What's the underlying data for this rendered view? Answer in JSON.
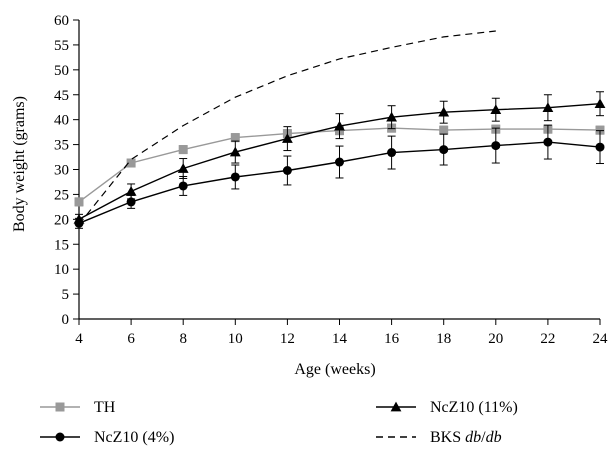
{
  "chart_data": {
    "type": "line",
    "title": "",
    "xlabel": "Age (weeks)",
    "ylabel": "Body weight (grams)",
    "xlim": [
      4,
      24
    ],
    "ylim": [
      0,
      60
    ],
    "x_ticks": [
      4,
      6,
      8,
      10,
      12,
      14,
      16,
      18,
      20,
      22,
      24
    ],
    "y_ticks": [
      0,
      5,
      10,
      15,
      20,
      25,
      30,
      35,
      40,
      45,
      50,
      55,
      60
    ],
    "grid": false,
    "legend_position": "bottom",
    "series": [
      {
        "name": "TH",
        "color": "#999999",
        "marker": "square",
        "line_style": "solid",
        "x": [
          4,
          6,
          8,
          10,
          12,
          14,
          16,
          18,
          20,
          22,
          24
        ],
        "y": [
          23.5,
          31.3,
          34.0,
          36.4,
          37.2,
          37.8,
          38.3,
          37.9,
          38.1,
          38.1,
          37.9
        ],
        "error": [
          0.8,
          0.8,
          0.8,
          0.8,
          0.8,
          0.8,
          0.8,
          0.8,
          0.8,
          0.8,
          0.8
        ]
      },
      {
        "name": "NcZ10 (11%)",
        "color": "#000000",
        "marker": "triangle",
        "line_style": "solid",
        "x": [
          4,
          6,
          8,
          10,
          12,
          14,
          16,
          18,
          20,
          22,
          24
        ],
        "y": [
          20.0,
          25.6,
          30.2,
          33.5,
          36.2,
          38.7,
          40.5,
          41.5,
          42.0,
          42.4,
          43.2
        ],
        "error": [
          1.0,
          1.5,
          2.0,
          2.2,
          2.4,
          2.5,
          2.3,
          2.2,
          2.3,
          2.6,
          2.4
        ]
      },
      {
        "name": "NcZ10 (4%)",
        "color": "#000000",
        "marker": "circle",
        "line_style": "solid",
        "x": [
          4,
          6,
          8,
          10,
          12,
          14,
          16,
          18,
          20,
          22,
          24
        ],
        "y": [
          19.2,
          23.5,
          26.7,
          28.5,
          29.8,
          31.5,
          33.4,
          34.0,
          34.8,
          35.5,
          34.5
        ],
        "error": [
          1.0,
          1.3,
          1.9,
          2.4,
          2.9,
          3.2,
          3.3,
          3.1,
          3.5,
          3.4,
          3.3
        ]
      },
      {
        "name": "BKS db/db",
        "color": "#000000",
        "marker": "none",
        "line_style": "dashed",
        "x": [
          4,
          6,
          8,
          10,
          12,
          14,
          16,
          18,
          20
        ],
        "y": [
          19.0,
          32.0,
          38.8,
          44.5,
          48.8,
          52.2,
          54.5,
          56.6,
          57.8
        ]
      }
    ],
    "legend": [
      {
        "series": "TH",
        "label_parts": [
          {
            "text": "TH",
            "italic": false
          }
        ]
      },
      {
        "series": "NcZ10 (11%)",
        "label_parts": [
          {
            "text": "NcZ10 (11%)",
            "italic": false
          }
        ]
      },
      {
        "series": "NcZ10 (4%)",
        "label_parts": [
          {
            "text": "NcZ10 (4%)",
            "italic": false
          }
        ]
      },
      {
        "series": "BKS db/db",
        "label_parts": [
          {
            "text": "BKS ",
            "italic": false
          },
          {
            "text": "db",
            "italic": true
          },
          {
            "text": "/",
            "italic": false
          },
          {
            "text": "db",
            "italic": true
          }
        ]
      }
    ]
  }
}
